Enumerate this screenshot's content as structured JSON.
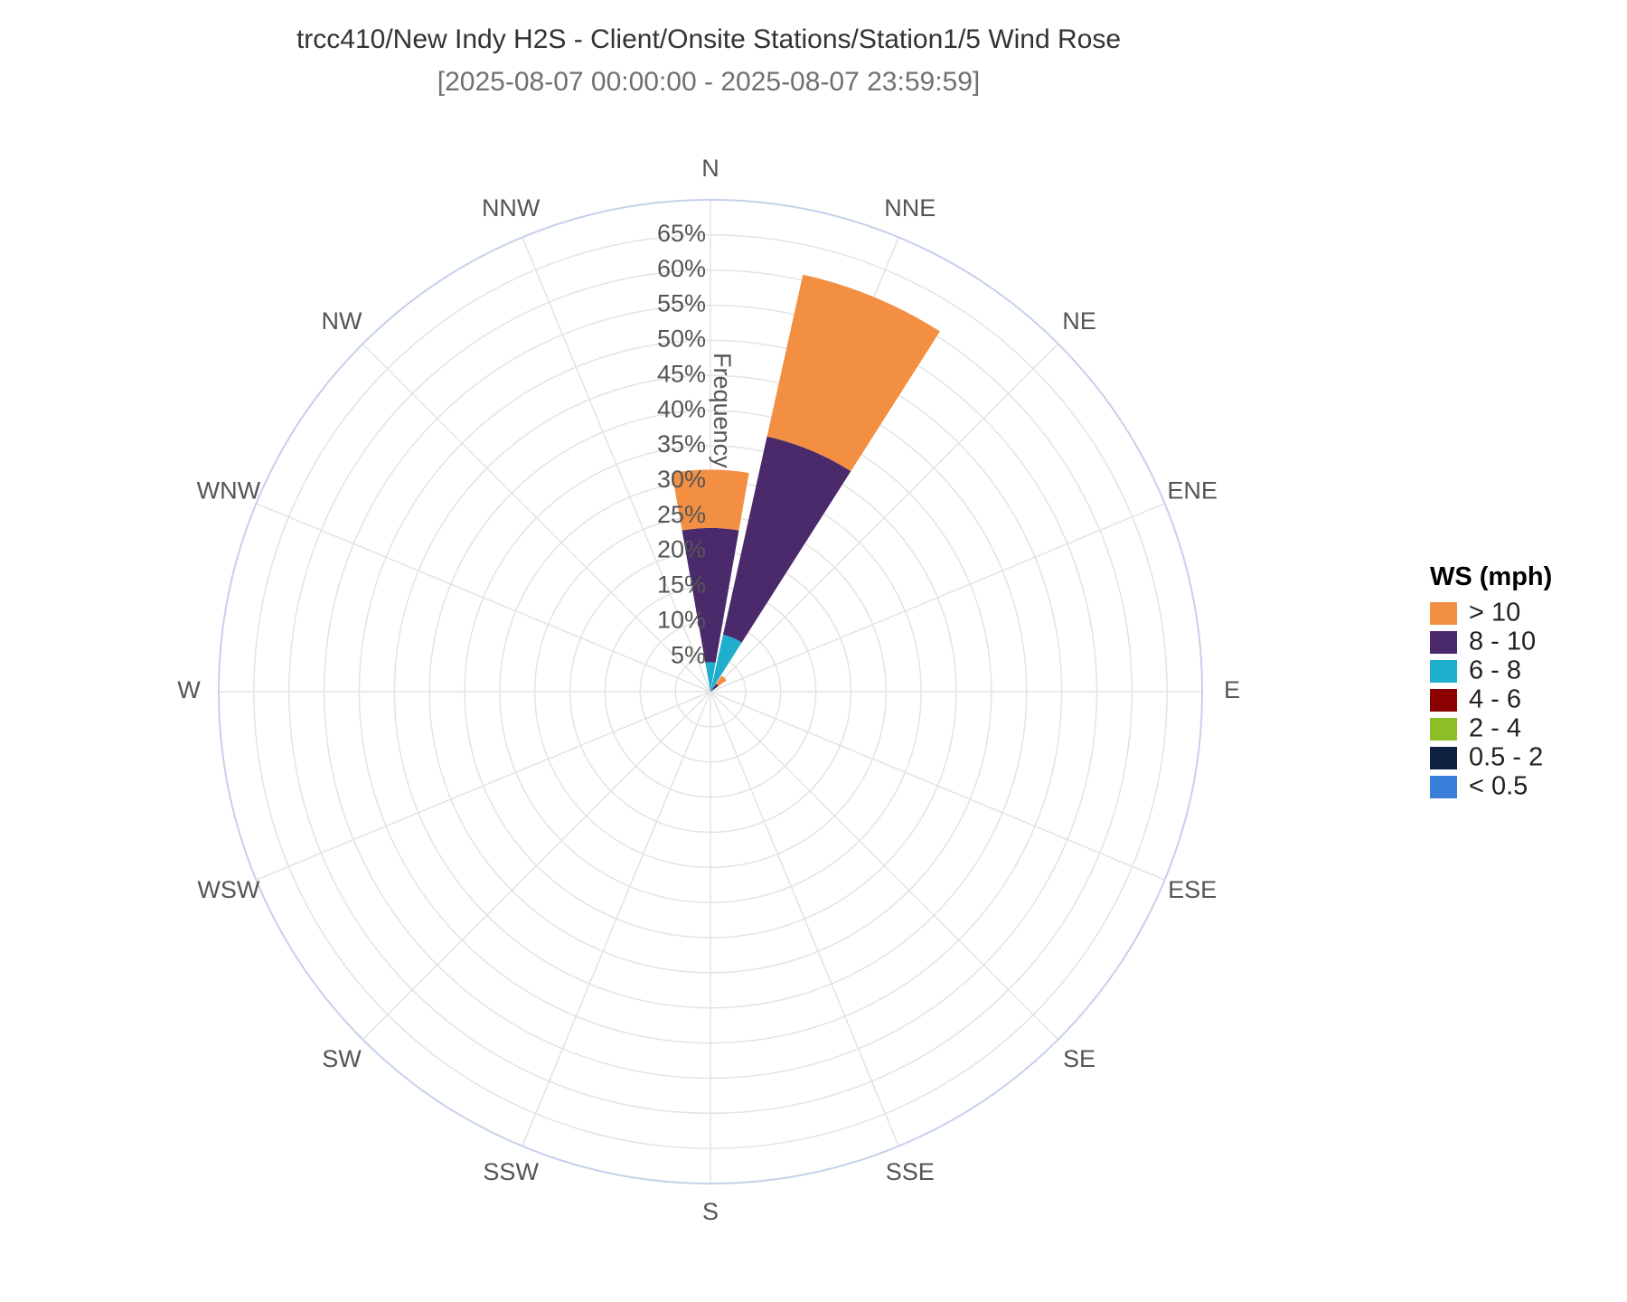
{
  "chart_data": {
    "type": "windrose",
    "title": "trcc410/New Indy H2S - Client/Onsite Stations/Station1/5 Wind Rose",
    "subtitle": "[2025-08-07 00:00:00 - 2025-08-07 23:59:59]",
    "radial_axis_title": "Frequency",
    "radial_range": [
      0,
      70
    ],
    "radial_ticks": [
      5,
      10,
      15,
      20,
      25,
      30,
      35,
      40,
      45,
      50,
      55,
      60,
      65
    ],
    "radial_tick_suffix": "%",
    "directions": [
      "N",
      "NNE",
      "NE",
      "ENE",
      "E",
      "ESE",
      "SE",
      "SSE",
      "S",
      "SSW",
      "SW",
      "WSW",
      "W",
      "WNW",
      "NW",
      "NNW"
    ],
    "legend_title": "WS (mph)",
    "legend_placement": "right",
    "series": [
      {
        "name": "< 0.5",
        "color": "#3a7fd9",
        "values": [
          0,
          0,
          0,
          0,
          0,
          0,
          0,
          0,
          0,
          0,
          0,
          0,
          0,
          0,
          0,
          0
        ]
      },
      {
        "name": "0.5 - 2",
        "color": "#0e2340",
        "values": [
          0,
          0,
          0,
          0,
          0,
          0,
          0,
          0,
          0,
          0,
          0,
          0,
          0,
          0,
          0,
          0
        ]
      },
      {
        "name": "2 - 4",
        "color": "#8cbf26",
        "values": [
          0,
          0,
          0,
          0,
          0,
          0,
          0,
          0,
          0,
          0,
          0,
          0,
          0,
          0,
          0,
          0
        ]
      },
      {
        "name": "4 - 6",
        "color": "#8b0000",
        "values": [
          0,
          0,
          0,
          0,
          0,
          0,
          0,
          0,
          0,
          0,
          0,
          0,
          0,
          0,
          0,
          0
        ]
      },
      {
        "name": "6 - 8",
        "color": "#1fafcc",
        "values": [
          4.2,
          8.3,
          0,
          0,
          0,
          0,
          0,
          0,
          0,
          0,
          0,
          0,
          0,
          0,
          0,
          0
        ]
      },
      {
        "name": "8 - 10",
        "color": "#4a2a6b",
        "values": [
          19.1,
          28.9,
          1.4,
          0,
          0,
          0,
          0,
          0,
          0,
          0,
          0,
          0,
          0,
          0,
          0,
          0
        ]
      },
      {
        "name": "> 10",
        "color": "#f28f43",
        "values": [
          8.3,
          23.6,
          1.4,
          0,
          0,
          0,
          0,
          0,
          0,
          0,
          0,
          0,
          0,
          0,
          0,
          0
        ]
      }
    ],
    "legend_order": [
      "> 10",
      "8 - 10",
      "6 - 8",
      "4 - 6",
      "2 - 4",
      "0.5 - 2",
      "< 0.5"
    ],
    "grid": true,
    "colors": {
      "grid": "#e3e3e3",
      "outer_ring": "#c5d1ea"
    }
  }
}
